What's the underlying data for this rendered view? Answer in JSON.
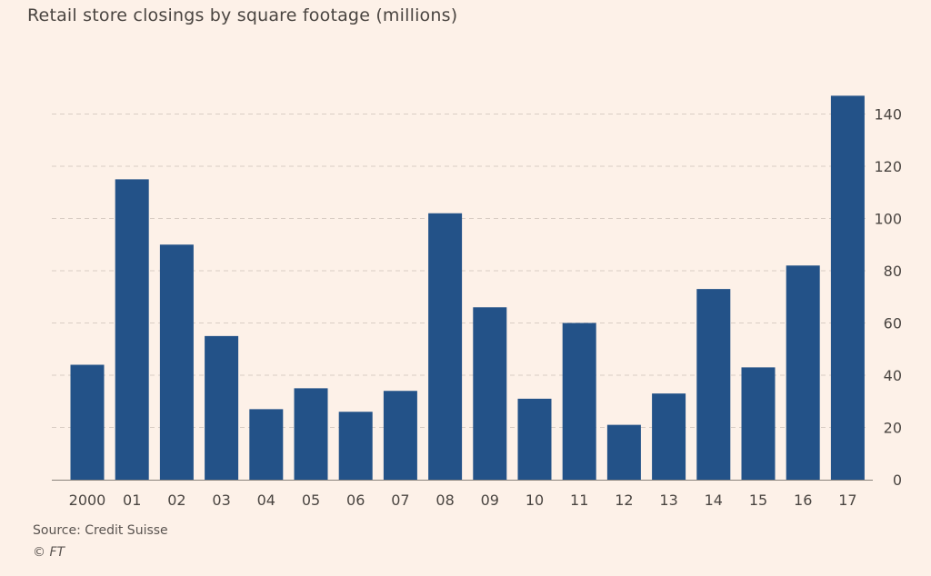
{
  "chart_data": {
    "type": "bar",
    "title": "Retail store closings by square footage (millions)",
    "categories": [
      "2000",
      "01",
      "02",
      "03",
      "04",
      "05",
      "06",
      "07",
      "08",
      "09",
      "10",
      "11",
      "12",
      "13",
      "14",
      "15",
      "16",
      "17"
    ],
    "values": [
      44,
      115,
      90,
      55,
      27,
      35,
      26,
      34,
      102,
      66,
      31,
      60,
      21,
      33,
      73,
      43,
      82,
      147
    ],
    "ylim": [
      0,
      150
    ],
    "yticks": [
      0,
      20,
      40,
      60,
      80,
      100,
      120,
      140
    ],
    "grid": true,
    "y_axis_side": "right",
    "xlabel": "",
    "ylabel": "",
    "bar_color": "#235288"
  },
  "footer": {
    "source": "Source: Credit Suisse",
    "copyright": "© FT"
  }
}
